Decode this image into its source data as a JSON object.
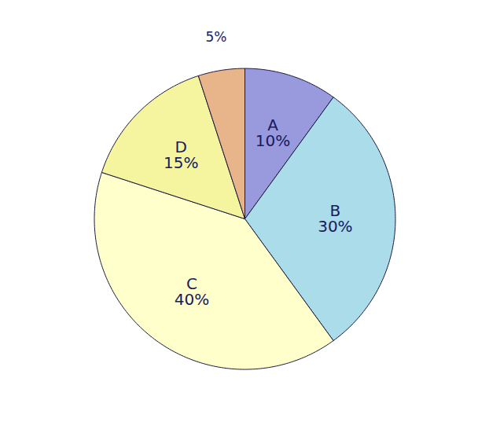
{
  "chart_data": {
    "type": "pie",
    "categories": [
      "A",
      "B",
      "C",
      "D",
      null
    ],
    "values": [
      10,
      30,
      40,
      15,
      5
    ],
    "value_labels": [
      "10%",
      "30%",
      "40%",
      "15%",
      "5%"
    ],
    "colors": [
      "#9999dd",
      "#aadcea",
      "#ffffcc",
      "#f5f5a0",
      "#e8b48a"
    ],
    "data_labels": true
  }
}
